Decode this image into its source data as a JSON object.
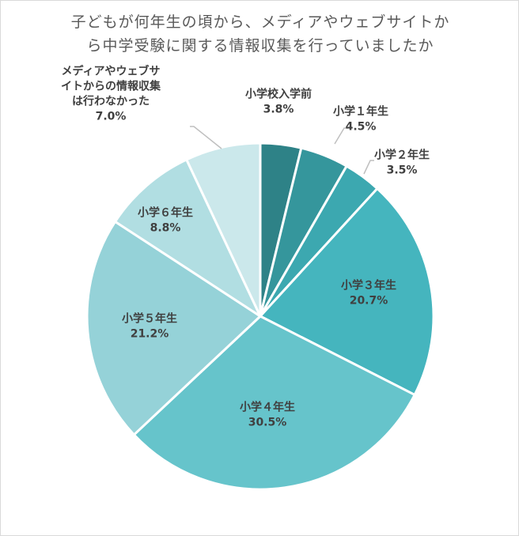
{
  "chart_data": {
    "type": "pie",
    "title": "子どもが何年生の頃から、メディアやウェブサイトから中学受験に関する情報収集を行っていましたか",
    "title_lines": [
      "子どもが何年生の頃から、メディアやウェブサイトか",
      "ら中学受験に関する情報収集を行っていましたか"
    ],
    "start": "12 o'clock",
    "direction": "clockwise",
    "slices": [
      {
        "label": "小学校入学前",
        "label_lines": [
          "小学校入学前"
        ],
        "value": 3.8,
        "value_label": "3.8%",
        "color": "#2e8287"
      },
      {
        "label": "小学１年生",
        "label_lines": [
          "小学１年生"
        ],
        "value": 4.5,
        "value_label": "4.5%",
        "color": "#35969c"
      },
      {
        "label": "小学２年生",
        "label_lines": [
          "小学２年生"
        ],
        "value": 3.5,
        "value_label": "3.5%",
        "color": "#3ca8b0"
      },
      {
        "label": "小学３年生",
        "label_lines": [
          "小学３年生"
        ],
        "value": 20.7,
        "value_label": "20.7%",
        "color": "#45b5be"
      },
      {
        "label": "小学４年生",
        "label_lines": [
          "小学４年生"
        ],
        "value": 30.5,
        "value_label": "30.5%",
        "color": "#66c4cb"
      },
      {
        "label": "小学５年生",
        "label_lines": [
          "小学５年生"
        ],
        "value": 21.2,
        "value_label": "21.2%",
        "color": "#95d2d8"
      },
      {
        "label": "小学６年生",
        "label_lines": [
          "小学６年生"
        ],
        "value": 8.8,
        "value_label": "8.8%",
        "color": "#b1dee2"
      },
      {
        "label": "メディアやウェブサイトからの情報収集は行わなかった",
        "label_lines": [
          "メディアやウェブサ",
          "イトからの情報収集",
          "は行わなかった"
        ],
        "value": 7.0,
        "value_label": "7.0%",
        "color": "#cbe8eb"
      }
    ]
  }
}
